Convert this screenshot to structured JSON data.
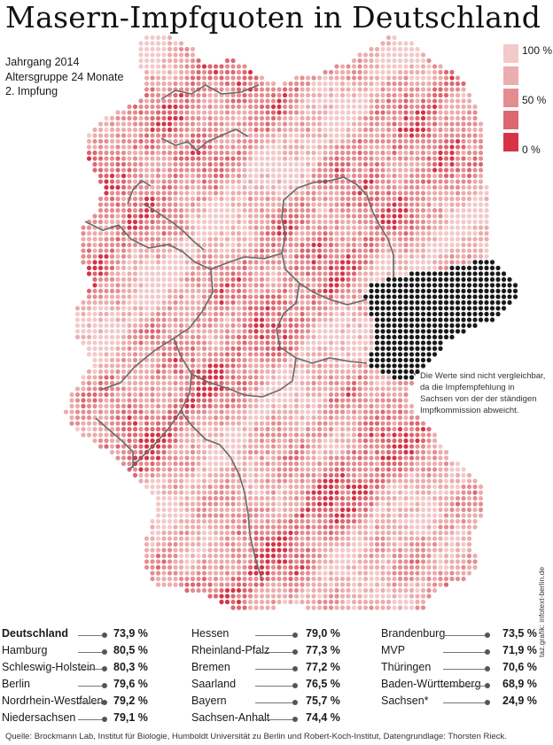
{
  "title": "Masern-Impfquoten in Deutschland",
  "meta": [
    "Jahrgang 2014",
    "Altersgruppe 24 Monate",
    "2. Impfung"
  ],
  "legend": {
    "colors": [
      "#f3c9c9",
      "#ebadad",
      "#e38d91",
      "#dc6770",
      "#d63346"
    ],
    "labels": [
      {
        "text": "100 %",
        "value": 100
      },
      {
        "text": "50 %",
        "value": 50
      },
      {
        "text": "0 %",
        "value": 0
      }
    ]
  },
  "map": {
    "region": "Deutschland",
    "excluded_region": "Sachsen",
    "excluded_color": "#1a1a1a",
    "border_color": "#6a6a6a"
  },
  "footnote": {
    "marker": "*",
    "lines": [
      "Die Werte sind nicht vergleichbar,",
      "da die Impfempfehlung in",
      "Sachsen von der der ständigen",
      "Impfkommission abweicht."
    ]
  },
  "table": {
    "columns": [
      [
        {
          "name": "Deutschland",
          "value": "73,9 %",
          "bold": true
        },
        {
          "name": "Hamburg",
          "value": "80,5 %"
        },
        {
          "name": "Schleswig-Holstein",
          "value": "80,3 %"
        },
        {
          "name": "Berlin",
          "value": "79,6 %"
        },
        {
          "name": "Nordrhein-Westfalen",
          "value": "79,2 %"
        },
        {
          "name": "Niedersachsen",
          "value": "79,1 %"
        }
      ],
      [
        {
          "name": "Hessen",
          "value": "79,0 %"
        },
        {
          "name": "Rheinland-Pfalz",
          "value": "77,3 %"
        },
        {
          "name": "Bremen",
          "value": "77,2 %"
        },
        {
          "name": "Saarland",
          "value": "76,5 %"
        },
        {
          "name": "Bayern",
          "value": "75,7 %"
        },
        {
          "name": "Sachsen-Anhalt",
          "value": "74,4 %"
        }
      ],
      [
        {
          "name": "Brandenburg",
          "value": "73,5 %"
        },
        {
          "name": "MVP",
          "value": "71,9 %"
        },
        {
          "name": "Thüringen",
          "value": "70,6 %"
        },
        {
          "name": "Baden-Württemberg",
          "value": "68,9 %"
        },
        {
          "name": "Sachsen*",
          "value": "24,9 %"
        }
      ]
    ]
  },
  "source": "Quelle: Brockmann Lab, Institut für Biologie, Humboldt Universität zu Berlin und Robert-Koch-Institut, Datengrundlage: Thorsten Rieck.",
  "credit": "taz.grafik: infotext-berlin.de"
}
